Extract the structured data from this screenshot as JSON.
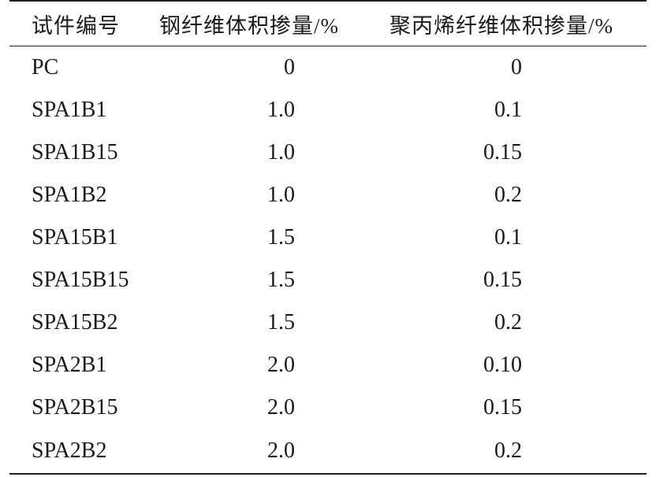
{
  "table": {
    "headers": [
      "试件编号",
      "钢纤维体积掺量/%",
      "聚丙烯纤维体积掺量/%"
    ],
    "rows": [
      {
        "id": "PC",
        "steel": "0",
        "pp": "0"
      },
      {
        "id": "SPA1B1",
        "steel": "1.0",
        "pp": "0.1"
      },
      {
        "id": "SPA1B15",
        "steel": "1.0",
        "pp": "0.15"
      },
      {
        "id": "SPA1B2",
        "steel": "1.0",
        "pp": "0.2"
      },
      {
        "id": "SPA15B1",
        "steel": "1.5",
        "pp": "0.1"
      },
      {
        "id": "SPA15B15",
        "steel": "1.5",
        "pp": "0.15"
      },
      {
        "id": "SPA15B2",
        "steel": "1.5",
        "pp": "0.2"
      },
      {
        "id": "SPA2B1",
        "steel": "2.0",
        "pp": "0.10"
      },
      {
        "id": "SPA2B15",
        "steel": "2.0",
        "pp": "0.15"
      },
      {
        "id": "SPA2B2",
        "steel": "2.0",
        "pp": "0.2"
      }
    ]
  }
}
